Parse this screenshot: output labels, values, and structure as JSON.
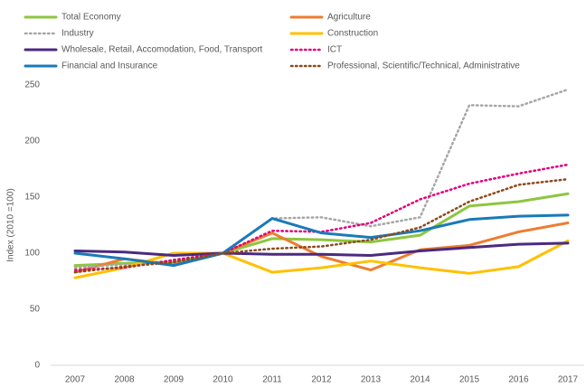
{
  "chart_data": {
    "type": "line",
    "y_label": "Index (2010 =100)",
    "categories": [
      "2007",
      "2008",
      "2009",
      "2010",
      "2011",
      "2012",
      "2013",
      "2014",
      "2015",
      "2016",
      "2017"
    ],
    "ylim": [
      0,
      250
    ],
    "yticks": [
      0,
      50,
      100,
      150,
      200,
      250
    ],
    "grid": false,
    "series": [
      {
        "name": "Total Economy",
        "color": "#8dc63f",
        "style": "solid",
        "values": [
          89,
          91,
          92,
          100,
          113,
          112,
          110,
          116,
          142,
          146,
          153
        ]
      },
      {
        "name": "Agriculture",
        "color": "#ed7d31",
        "style": "solid",
        "values": [
          83,
          95,
          90,
          100,
          118,
          97,
          85,
          103,
          107,
          119,
          127
        ]
      },
      {
        "name": "Industry",
        "color": "#a6a6a6",
        "style": "dotted",
        "values": [
          87,
          90,
          92,
          100,
          131,
          132,
          124,
          132,
          232,
          231,
          246
        ]
      },
      {
        "name": "Construction",
        "color": "#ffc000",
        "style": "solid",
        "values": [
          78,
          87,
          100,
          100,
          83,
          87,
          93,
          87,
          82,
          88,
          111
        ]
      },
      {
        "name": "Wholesale, Retail, Accomodation, Food, Transport",
        "color": "#4b2a7f",
        "style": "solid",
        "values": [
          102,
          101,
          98,
          100,
          99,
          99,
          98,
          102,
          105,
          108,
          109
        ]
      },
      {
        "name": "ICT",
        "color": "#e0007a",
        "style": "dotted",
        "values": [
          85,
          87,
          94,
          100,
          120,
          119,
          127,
          148,
          162,
          171,
          179
        ]
      },
      {
        "name": "Financial and Insurance",
        "color": "#1a7ab8",
        "style": "solid",
        "values": [
          100,
          95,
          89,
          100,
          131,
          118,
          114,
          120,
          130,
          133,
          134
        ]
      },
      {
        "name": "Professional, Scientific/Technical, Administrative",
        "color": "#8b4a1c",
        "style": "dotted",
        "values": [
          83,
          88,
          92,
          100,
          104,
          106,
          112,
          123,
          146,
          161,
          166
        ]
      }
    ]
  }
}
